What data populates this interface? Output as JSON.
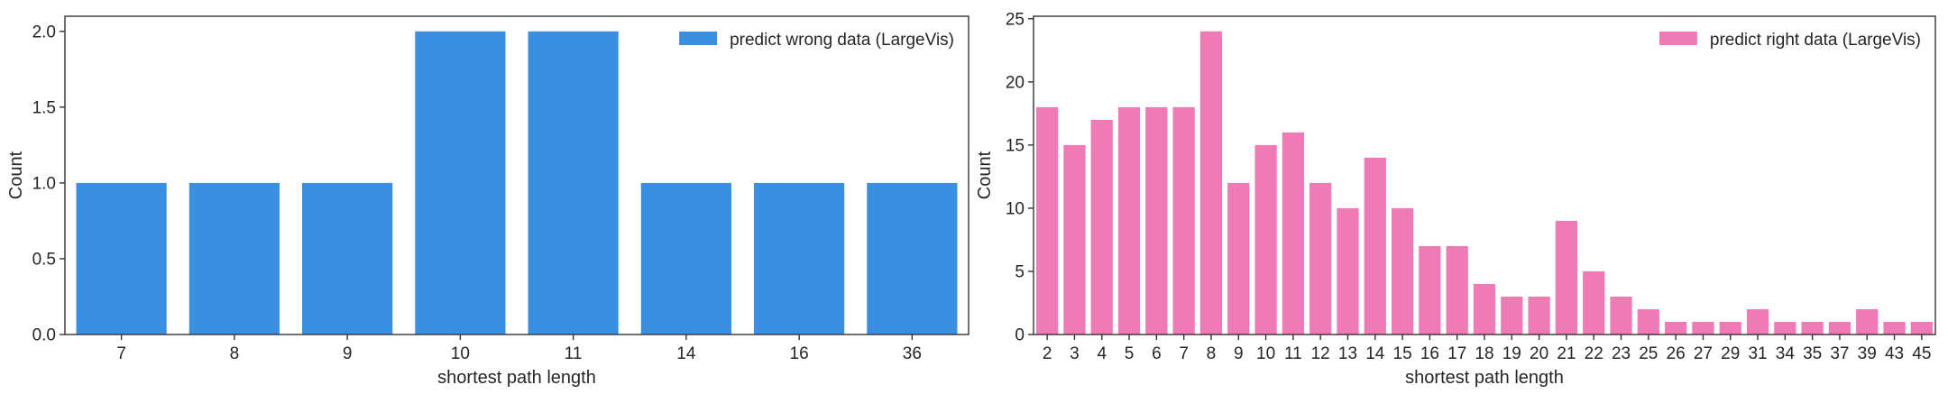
{
  "chart_data": [
    {
      "type": "bar",
      "categories": [
        "7",
        "8",
        "9",
        "10",
        "11",
        "14",
        "16",
        "36"
      ],
      "series": [
        {
          "name": "predict wrong data (LargeVis)",
          "values": [
            1,
            1,
            1,
            2,
            2,
            1,
            1,
            1
          ]
        }
      ],
      "xlabel": "shortest path length",
      "ylabel": "Count",
      "ylim": [
        0,
        2.1
      ],
      "yticks": [
        "0.0",
        "0.5",
        "1.0",
        "1.5",
        "2.0"
      ],
      "legend": "top-right",
      "grid": false,
      "color": "#3b8fe0"
    },
    {
      "type": "bar",
      "categories": [
        "2",
        "3",
        "4",
        "5",
        "6",
        "7",
        "8",
        "9",
        "10",
        "11",
        "12",
        "13",
        "14",
        "15",
        "16",
        "17",
        "18",
        "19",
        "20",
        "21",
        "22",
        "23",
        "25",
        "26",
        "27",
        "29",
        "31",
        "34",
        "35",
        "37",
        "39",
        "43",
        "45"
      ],
      "series": [
        {
          "name": "predict right data (LargeVis)",
          "values": [
            18,
            15,
            17,
            18,
            18,
            18,
            24,
            12,
            15,
            16,
            12,
            10,
            14,
            10,
            7,
            7,
            4,
            3,
            3,
            9,
            5,
            3,
            2,
            1,
            1,
            1,
            2,
            1,
            1,
            1,
            2,
            1,
            1
          ]
        }
      ],
      "xlabel": "shortest path length",
      "ylabel": "Count",
      "ylim": [
        0,
        25.2
      ],
      "yticks": [
        "0",
        "5",
        "10",
        "15",
        "20",
        "25"
      ],
      "legend": "top-right",
      "grid": false,
      "color": "#ee7bb6"
    }
  ]
}
